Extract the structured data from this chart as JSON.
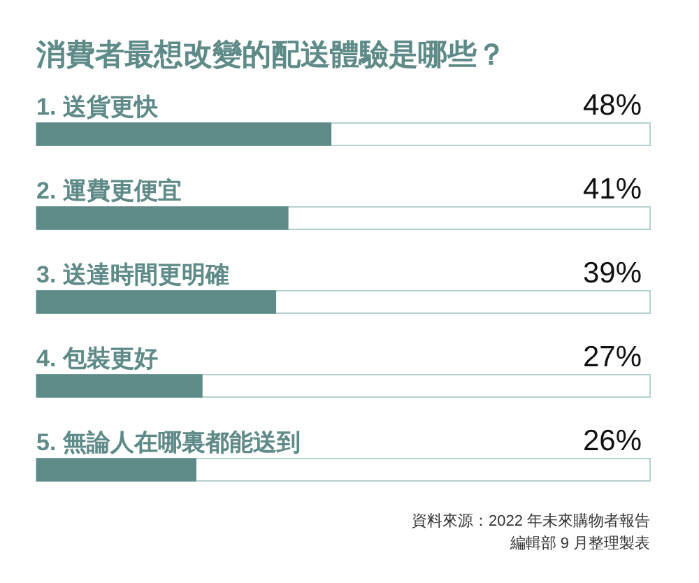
{
  "chart_data": {
    "type": "bar",
    "orientation": "horizontal",
    "title": "消費者最想改變的配送體驗是哪些？",
    "categories": [
      "1. 送貨更快",
      "2. 運費更便宜",
      "3. 送達時間更明確",
      "4. 包裝更好",
      "5. 無論人在哪裏都能送到"
    ],
    "values": [
      48,
      41,
      39,
      27,
      26
    ],
    "value_labels": [
      "48%",
      "41%",
      "39%",
      "27%",
      "26%"
    ],
    "color": "#5e8a87",
    "xlim": [
      0,
      100
    ],
    "tick_labels": "y",
    "annotations": [
      "資料來源：2022 年未來購物者報告",
      "編輯部 9 月整理製表"
    ]
  }
}
